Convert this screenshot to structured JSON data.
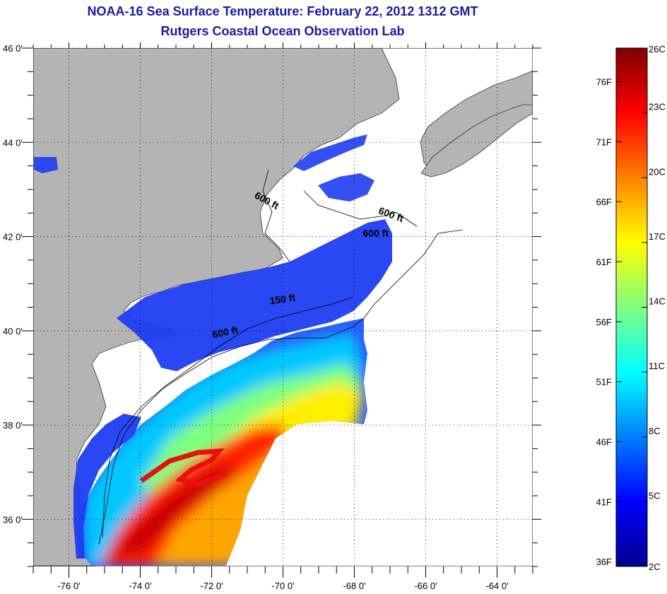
{
  "header": {
    "title": "NOAA-16 Sea Surface Temperature:  February 22, 2012 1312 GMT",
    "subtitle": "Rutgers Coastal Ocean Observation Lab"
  },
  "map": {
    "lon_range": [
      -77,
      -63
    ],
    "lat_range": [
      35,
      46
    ],
    "lon_ticks": [
      {
        "v": -76,
        "label": "-76 0'"
      },
      {
        "v": -74,
        "label": "-74 0'"
      },
      {
        "v": -72,
        "label": "-72 0'"
      },
      {
        "v": -70,
        "label": "-70 0'"
      },
      {
        "v": -68,
        "label": "-68 0'"
      },
      {
        "v": -66,
        "label": "-66 0'"
      },
      {
        "v": -64,
        "label": "-64 0'"
      }
    ],
    "lat_ticks": [
      {
        "v": 46,
        "label": "46 0'"
      },
      {
        "v": 44,
        "label": "44 0'"
      },
      {
        "v": 42,
        "label": "42 0'"
      },
      {
        "v": 40,
        "label": "40 0'"
      },
      {
        "v": 38,
        "label": "38 0'"
      },
      {
        "v": 36,
        "label": "36 0'"
      }
    ],
    "contour_labels": [
      {
        "text": "600 ft",
        "lon": -70.5,
        "lat": 42.7
      },
      {
        "text": "600 ft",
        "lon": -67.0,
        "lat": 42.4
      },
      {
        "text": "600 ft",
        "lon": -67.4,
        "lat": 42.0
      },
      {
        "text": "150 ft",
        "lon": -70.0,
        "lat": 40.6
      },
      {
        "text": "600 ft",
        "lon": -71.6,
        "lat": 39.9
      }
    ],
    "colors": {
      "land": "#b4b4b4",
      "no_data": "#ffffff"
    }
  },
  "colorbar": {
    "range_c": [
      2,
      26
    ],
    "celsius": [
      {
        "v": 26,
        "label": "26C"
      },
      {
        "v": 23,
        "label": "23C"
      },
      {
        "v": 20,
        "label": "20C"
      },
      {
        "v": 17,
        "label": "17C"
      },
      {
        "v": 14,
        "label": "14C"
      },
      {
        "v": 11,
        "label": "11C"
      },
      {
        "v": 8,
        "label": "8C"
      },
      {
        "v": 5,
        "label": "5C"
      },
      {
        "v": 2,
        "label": "2C"
      }
    ],
    "fahrenheit": [
      {
        "v": 76,
        "label": "76F"
      },
      {
        "v": 71,
        "label": "71F"
      },
      {
        "v": 66,
        "label": "66F"
      },
      {
        "v": 61,
        "label": "61F"
      },
      {
        "v": 56,
        "label": "56F"
      },
      {
        "v": 51,
        "label": "51F"
      },
      {
        "v": 46,
        "label": "46F"
      },
      {
        "v": 41,
        "label": "41F"
      },
      {
        "v": 36,
        "label": "36F"
      }
    ],
    "palette": [
      "#00008f",
      "#0000ff",
      "#0080ff",
      "#00ffff",
      "#80ff80",
      "#ffff00",
      "#ff8000",
      "#ff0000",
      "#800000"
    ]
  }
}
